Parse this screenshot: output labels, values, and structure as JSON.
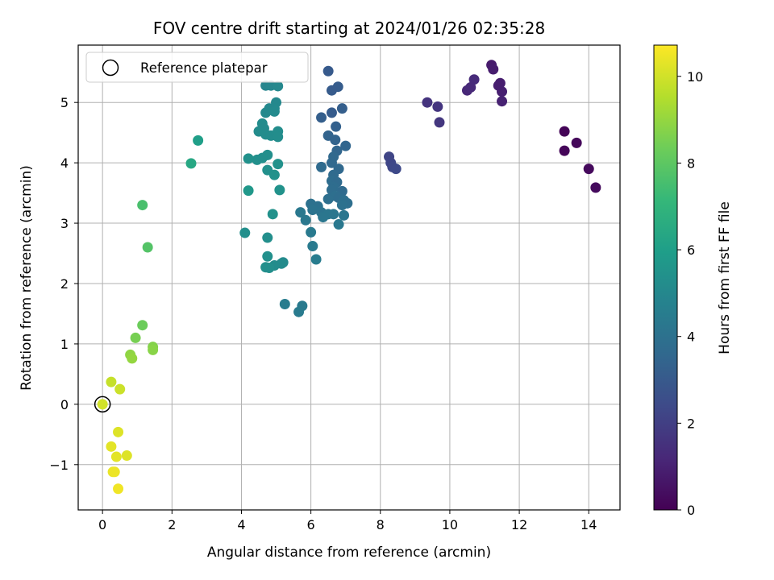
{
  "chart_data": {
    "type": "scatter",
    "title": "FOV centre drift starting at 2024/01/26 02:35:28",
    "xlabel": "Angular distance from reference (arcmin)",
    "ylabel": "Rotation from reference (arcmin)",
    "xlim": [
      -0.7,
      14.9
    ],
    "ylim": [
      -1.75,
      5.95
    ],
    "xticks": [
      0,
      2,
      4,
      6,
      8,
      10,
      12,
      14
    ],
    "yticks": [
      -1,
      0,
      1,
      2,
      3,
      4,
      5
    ],
    "xtick_labels": [
      "0",
      "2",
      "4",
      "6",
      "8",
      "10",
      "12",
      "14"
    ],
    "ytick_labels": [
      "−1",
      "0",
      "1",
      "2",
      "3",
      "4",
      "5"
    ],
    "grid": true,
    "legend": {
      "placement": "top-left",
      "entries": [
        "Reference platepar"
      ]
    },
    "reference_point": {
      "x": 0,
      "y": 0,
      "label": "Reference platepar"
    },
    "colorbar": {
      "label": "Hours from first FF file",
      "colormap": "viridis",
      "range": [
        0,
        10.72
      ],
      "ticks": [
        0,
        2,
        4,
        6,
        8,
        10
      ],
      "tick_labels": [
        "0",
        "2",
        "4",
        "6",
        "8",
        "10"
      ]
    },
    "points": [
      [
        13.3,
        4.52,
        0.1
      ],
      [
        13.3,
        4.2,
        0.15
      ],
      [
        13.65,
        4.33,
        0.2
      ],
      [
        14.0,
        3.9,
        0.25
      ],
      [
        14.2,
        3.59,
        0.3
      ],
      [
        11.2,
        5.62,
        0.8
      ],
      [
        11.25,
        5.55,
        0.85
      ],
      [
        11.45,
        5.32,
        0.9
      ],
      [
        11.5,
        5.18,
        0.95
      ],
      [
        11.5,
        5.02,
        1.0
      ],
      [
        11.4,
        5.28,
        0.9
      ],
      [
        10.5,
        5.2,
        1.2
      ],
      [
        10.6,
        5.25,
        1.25
      ],
      [
        10.7,
        5.38,
        1.3
      ],
      [
        9.35,
        5.0,
        1.6
      ],
      [
        9.65,
        4.93,
        1.65
      ],
      [
        9.7,
        4.67,
        1.7
      ],
      [
        8.25,
        4.1,
        2.2
      ],
      [
        8.3,
        4.0,
        2.25
      ],
      [
        8.35,
        3.93,
        2.3
      ],
      [
        8.45,
        3.9,
        2.35
      ],
      [
        6.5,
        5.52,
        3.0
      ],
      [
        6.78,
        5.26,
        3.1
      ],
      [
        6.6,
        5.2,
        3.05
      ],
      [
        6.9,
        4.9,
        3.2
      ],
      [
        6.6,
        4.83,
        3.1
      ],
      [
        6.3,
        4.75,
        3.2
      ],
      [
        6.72,
        4.6,
        3.3
      ],
      [
        6.5,
        4.45,
        3.4
      ],
      [
        6.7,
        4.38,
        3.4
      ],
      [
        7.0,
        4.28,
        3.5
      ],
      [
        6.75,
        4.2,
        3.5
      ],
      [
        6.65,
        4.1,
        3.6
      ],
      [
        6.6,
        4.0,
        3.6
      ],
      [
        6.3,
        3.93,
        3.7
      ],
      [
        6.8,
        3.9,
        3.6
      ],
      [
        6.65,
        3.8,
        3.7
      ],
      [
        6.6,
        3.7,
        3.8
      ],
      [
        6.75,
        3.68,
        3.7
      ],
      [
        6.65,
        3.6,
        3.8
      ],
      [
        6.6,
        3.55,
        3.8
      ],
      [
        6.9,
        3.53,
        3.7
      ],
      [
        6.7,
        3.45,
        3.9
      ],
      [
        6.5,
        3.4,
        3.9
      ],
      [
        6.8,
        3.42,
        3.8
      ],
      [
        6.95,
        3.38,
        3.9
      ],
      [
        7.05,
        3.33,
        3.9
      ],
      [
        6.9,
        3.3,
        4.0
      ],
      [
        6.0,
        3.32,
        4.0
      ],
      [
        6.2,
        3.28,
        4.0
      ],
      [
        6.05,
        3.22,
        4.1
      ],
      [
        6.3,
        3.18,
        4.1
      ],
      [
        6.5,
        3.15,
        4.2
      ],
      [
        6.65,
        3.15,
        4.2
      ],
      [
        6.95,
        3.13,
        4.2
      ],
      [
        6.35,
        3.1,
        4.2
      ],
      [
        5.7,
        3.18,
        4.3
      ],
      [
        5.85,
        3.05,
        4.3
      ],
      [
        6.8,
        2.98,
        4.3
      ],
      [
        6.0,
        2.85,
        4.4
      ],
      [
        6.05,
        2.62,
        4.4
      ],
      [
        6.15,
        2.4,
        4.5
      ],
      [
        5.75,
        1.63,
        4.4
      ],
      [
        5.65,
        1.53,
        4.45
      ],
      [
        5.25,
        1.66,
        4.5
      ],
      [
        4.7,
        5.28,
        4.9
      ],
      [
        4.85,
        5.28,
        4.95
      ],
      [
        5.05,
        5.27,
        5.0
      ],
      [
        5.0,
        5.0,
        5.0
      ],
      [
        4.95,
        4.9,
        5.05
      ],
      [
        4.8,
        4.9,
        5.0
      ],
      [
        4.7,
        4.83,
        5.05
      ],
      [
        4.95,
        4.85,
        5.1
      ],
      [
        4.6,
        4.65,
        5.2
      ],
      [
        4.65,
        4.57,
        5.15
      ],
      [
        4.5,
        4.52,
        5.2
      ],
      [
        4.7,
        4.47,
        5.2
      ],
      [
        4.85,
        4.45,
        5.2
      ],
      [
        5.05,
        4.52,
        5.25
      ],
      [
        5.05,
        4.43,
        5.25
      ],
      [
        4.75,
        4.13,
        5.3
      ],
      [
        4.45,
        4.05,
        5.35
      ],
      [
        4.6,
        4.08,
        5.3
      ],
      [
        4.2,
        4.07,
        5.4
      ],
      [
        5.05,
        3.98,
        5.4
      ],
      [
        4.75,
        3.88,
        5.35
      ],
      [
        4.95,
        3.8,
        5.4
      ],
      [
        5.1,
        3.55,
        5.45
      ],
      [
        4.9,
        3.15,
        5.4
      ],
      [
        4.1,
        2.84,
        5.3
      ],
      [
        4.75,
        2.76,
        5.3
      ],
      [
        4.75,
        2.45,
        5.35
      ],
      [
        5.2,
        2.35,
        5.1
      ],
      [
        5.15,
        2.33,
        5.15
      ],
      [
        4.95,
        2.3,
        5.2
      ],
      [
        4.7,
        2.27,
        5.3
      ],
      [
        4.8,
        2.26,
        5.3
      ],
      [
        4.2,
        3.54,
        5.7
      ],
      [
        2.75,
        4.37,
        6.0
      ],
      [
        2.55,
        3.99,
        6.4
      ],
      [
        1.15,
        3.3,
        7.6
      ],
      [
        1.3,
        2.6,
        7.8
      ],
      [
        1.15,
        1.31,
        8.3
      ],
      [
        0.95,
        1.1,
        8.5
      ],
      [
        1.45,
        0.95,
        8.7
      ],
      [
        1.45,
        0.9,
        8.8
      ],
      [
        0.8,
        0.82,
        8.9
      ],
      [
        0.85,
        0.76,
        9.0
      ],
      [
        0.25,
        0.37,
        9.8
      ],
      [
        0.5,
        0.25,
        9.9
      ],
      [
        0.0,
        0.0,
        10.0
      ],
      [
        0.45,
        -0.46,
        10.2
      ],
      [
        0.25,
        -0.7,
        10.3
      ],
      [
        0.4,
        -0.87,
        10.3
      ],
      [
        0.7,
        -0.85,
        10.2
      ],
      [
        0.3,
        -1.12,
        10.4
      ],
      [
        0.35,
        -1.12,
        10.45
      ],
      [
        0.45,
        -1.4,
        10.5
      ]
    ]
  }
}
